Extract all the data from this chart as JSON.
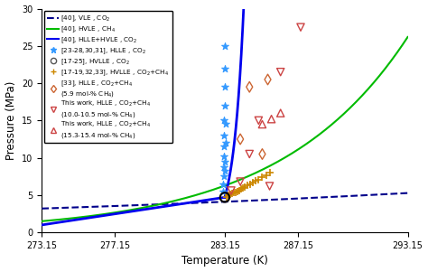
{
  "xlabel": "Temperature (K)",
  "ylabel": "Pressure (MPa)",
  "xlim": [
    273.15,
    293.15
  ],
  "ylim": [
    0,
    30
  ],
  "xticks": [
    273.15,
    277.15,
    283.15,
    287.15,
    293.15
  ],
  "xtick_labels": [
    "273.15",
    "277.15",
    "283.15",
    "287.15",
    "293.15"
  ],
  "yticks": [
    0,
    5,
    10,
    15,
    20,
    25,
    30
  ],
  "vle_co2_color": "#00008B",
  "hvle_ch4_color": "#00BB00",
  "hlle_hvle_co2_color": "#0000EE",
  "hlle_co2_scatter": {
    "T": [
      283.05,
      283.07,
      283.08,
      283.09,
      283.1,
      283.1,
      283.11,
      283.12,
      283.13,
      283.14,
      283.15,
      283.15,
      283.16,
      283.17,
      283.18,
      283.2
    ],
    "P": [
      5.5,
      6.5,
      7.5,
      8.8,
      10.2,
      11.5,
      13.0,
      15.0,
      17.0,
      19.5,
      22.0,
      25.0,
      8.2,
      9.5,
      12.0,
      14.5
    ],
    "color": "#3399FF",
    "marker": "*",
    "size": 35
  },
  "hvlle_co2_scatter": {
    "T": [
      283.15
    ],
    "P": [
      4.7
    ],
    "color": "#000000",
    "marker": "o",
    "size": 55,
    "facecolor": "none"
  },
  "hvlle_co2ch4_scatter": {
    "T": [
      283.25,
      283.35,
      283.45,
      283.55,
      283.65,
      283.75,
      283.85,
      283.95,
      284.05,
      284.15,
      284.25,
      284.4,
      284.55,
      284.7,
      284.85,
      285.0,
      285.2,
      285.4,
      285.6
    ],
    "P": [
      4.8,
      5.0,
      5.1,
      5.2,
      5.3,
      5.4,
      5.5,
      5.65,
      5.8,
      5.95,
      6.1,
      6.3,
      6.5,
      6.7,
      6.9,
      7.1,
      7.4,
      7.7,
      8.0
    ],
    "color": "#CC8800",
    "marker": "+",
    "size": 40
  },
  "hlle_co2ch4_59_scatter": {
    "T": [
      284.0,
      284.5,
      285.2,
      285.5
    ],
    "P": [
      12.5,
      19.5,
      10.5,
      20.5
    ],
    "color": "#CC6633",
    "marker": "d",
    "size": 35,
    "facecolor": "none"
  },
  "this_work_hlle_1005_scatter": {
    "T": [
      283.5,
      284.0,
      284.5,
      285.0,
      285.6,
      286.2,
      287.3
    ],
    "P": [
      5.6,
      6.8,
      10.5,
      15.0,
      6.2,
      21.5,
      27.5
    ],
    "color": "#CC4444",
    "marker": "v",
    "size": 35,
    "facecolor": "none"
  },
  "this_work_hlle_1534_scatter": {
    "T": [
      285.2,
      285.7,
      286.2
    ],
    "P": [
      14.5,
      15.2,
      16.0
    ],
    "color": "#CC4444",
    "marker": "^",
    "size": 35,
    "facecolor": "none"
  },
  "legend_entries": [
    {
      "label": "[40], VLE , CO$_2$",
      "linestyle": "--",
      "color": "#00008B",
      "linewidth": 1.5
    },
    {
      "label": "[40], HVLE , CH$_4$",
      "linestyle": "-",
      "color": "#00BB00",
      "linewidth": 1.5
    },
    {
      "label": "[40], HLLE+HVLE , CO$_2$",
      "linestyle": "-",
      "color": "#0000EE",
      "linewidth": 1.5
    },
    {
      "label": "[23-28,30,31], HLLE , CO$_2$",
      "marker": "*",
      "color": "#3399FF"
    },
    {
      "label": "[17-25], HVLLE , CO$_2$",
      "marker": "o",
      "color": "#555555"
    },
    {
      "label": "[17-19,32,33], HVLLE , CO$_2$+CH$_4$",
      "marker": "+",
      "color": "#CC8800"
    },
    {
      "label": "[33], HLLE , CO$_2$+CH$_4$\n(5.9 mol-% CH$_4$)",
      "marker": "d",
      "color": "#CC6633"
    },
    {
      "label": "This work, HLLE , CO$_2$+CH$_4$\n(10.0-10.5 mol-% CH$_4$)",
      "marker": "v",
      "color": "#CC4444"
    },
    {
      "label": "This work, HLLE , CO$_2$+CH$_4$\n(15.3-15.4 mol-% CH$_4$)",
      "marker": "^",
      "color": "#CC4444"
    }
  ]
}
